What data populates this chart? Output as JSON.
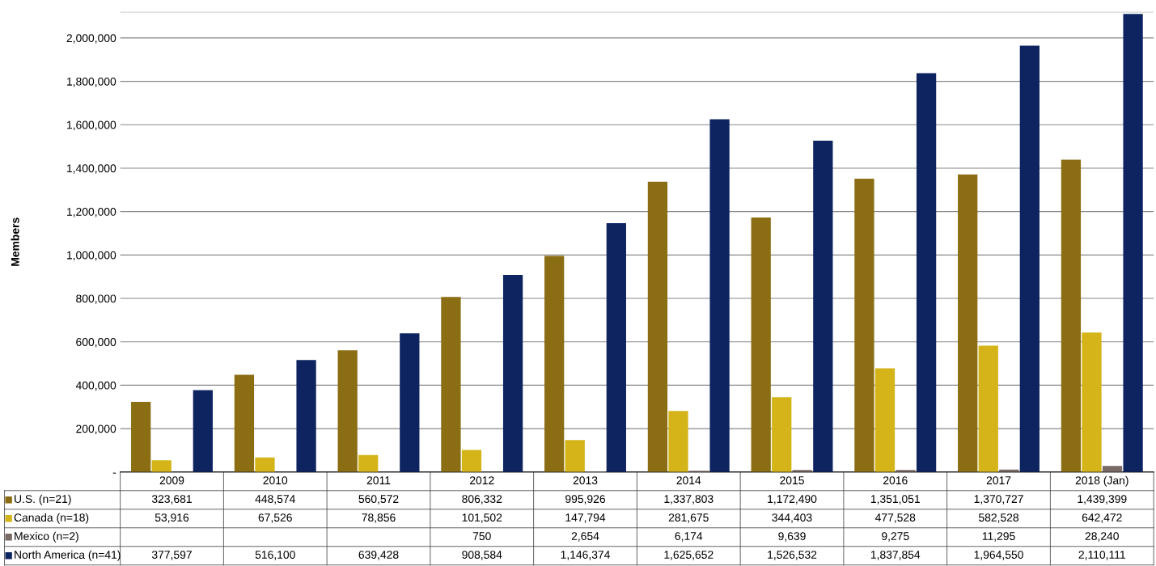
{
  "chart_data": {
    "type": "bar",
    "ylabel": "Members",
    "categories": [
      "2009",
      "2010",
      "2011",
      "2012",
      "2013",
      "2014",
      "2015",
      "2016",
      "2017",
      "2018 (Jan)"
    ],
    "series": [
      {
        "name": "U.S. (n=21)",
        "color": "#8b6d14",
        "values": [
          323681,
          448574,
          560572,
          806332,
          995926,
          1337803,
          1172490,
          1351051,
          1370727,
          1439399
        ],
        "value_labels": [
          "323,681",
          "448,574",
          "560,572",
          "806,332",
          "995,926",
          "1,337,803",
          "1,172,490",
          "1,351,051",
          "1,370,727",
          "1,439,399"
        ]
      },
      {
        "name": "Canada (n=18)",
        "color": "#d4b418",
        "values": [
          53916,
          67526,
          78856,
          101502,
          147794,
          281675,
          344403,
          477528,
          582528,
          642472
        ],
        "value_labels": [
          "53,916",
          "67,526",
          "78,856",
          "101,502",
          "147,794",
          "281,675",
          "344,403",
          "477,528",
          "582,528",
          "642,472"
        ]
      },
      {
        "name": "Mexico (n=2)",
        "color": "#7a6a66",
        "values": [
          null,
          null,
          null,
          750,
          2654,
          6174,
          9639,
          9275,
          11295,
          28240
        ],
        "value_labels": [
          null,
          null,
          null,
          "750",
          "2,654",
          "6,174",
          "9,639",
          "9,275",
          "11,295",
          "28,240"
        ]
      },
      {
        "name": "North America (n=41)",
        "color": "#0d2461",
        "values": [
          377597,
          516100,
          639428,
          908584,
          1146374,
          1625652,
          1526532,
          1837854,
          1964550,
          2110111
        ],
        "value_labels": [
          "377,597",
          "516,100",
          "639,428",
          "908,584",
          "1,146,374",
          "1,625,652",
          "1,526,532",
          "1,837,854",
          "1,964,550",
          "2,110,111"
        ]
      }
    ],
    "ylim": [
      0,
      2120000
    ],
    "yticks": [
      {
        "value": 0,
        "label": "-"
      },
      {
        "value": 200000,
        "label": "200,000"
      },
      {
        "value": 400000,
        "label": "400,000"
      },
      {
        "value": 600000,
        "label": "600,000"
      },
      {
        "value": 800000,
        "label": "800,000"
      },
      {
        "value": 1000000,
        "label": "1,000,000"
      },
      {
        "value": 1200000,
        "label": "1,200,000"
      },
      {
        "value": 1400000,
        "label": "1,400,000"
      },
      {
        "value": 1600000,
        "label": "1,600,000"
      },
      {
        "value": 1800000,
        "label": "1,800,000"
      },
      {
        "value": 2000000,
        "label": "2,000,000"
      }
    ],
    "grid": "y",
    "legend": "bottom"
  }
}
